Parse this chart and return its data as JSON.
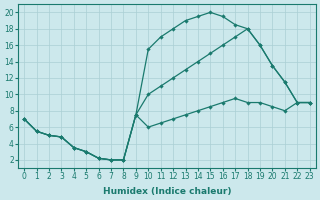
{
  "xlabel": "Humidex (Indice chaleur)",
  "bg_color": "#cce8ec",
  "grid_color": "#aacfd4",
  "line_color": "#1a7a6e",
  "xlim": [
    -0.5,
    23.5
  ],
  "ylim": [
    1,
    21
  ],
  "xticks": [
    0,
    1,
    2,
    3,
    4,
    5,
    6,
    7,
    8,
    9,
    10,
    11,
    12,
    13,
    14,
    15,
    16,
    17,
    18,
    19,
    20,
    21,
    22,
    23
  ],
  "yticks": [
    2,
    4,
    6,
    8,
    10,
    12,
    14,
    16,
    18,
    20
  ],
  "line1_x": [
    0,
    1,
    2,
    3,
    4,
    5,
    6,
    7,
    8,
    9,
    10,
    11,
    12,
    13,
    14,
    15,
    16,
    17,
    18,
    19,
    20,
    21,
    22,
    23
  ],
  "line1_y": [
    7.0,
    5.5,
    5.0,
    4.8,
    3.5,
    3.0,
    2.2,
    2.0,
    2.0,
    7.5,
    15.5,
    17.0,
    18.0,
    19.0,
    19.5,
    20.0,
    19.5,
    18.5,
    18.0,
    16.0,
    13.5,
    11.5,
    9.0,
    9.0
  ],
  "line2_x": [
    0,
    1,
    2,
    3,
    4,
    5,
    6,
    7,
    8,
    9,
    10,
    11,
    12,
    13,
    14,
    15,
    16,
    17,
    18,
    19,
    20,
    21,
    22,
    23
  ],
  "line2_y": [
    7.0,
    5.5,
    5.0,
    4.8,
    3.5,
    3.0,
    2.2,
    2.0,
    2.0,
    7.5,
    6.0,
    6.5,
    7.0,
    7.5,
    8.0,
    8.5,
    9.0,
    9.5,
    9.0,
    9.0,
    8.5,
    8.0,
    9.0,
    9.0
  ],
  "line3_x": [
    0,
    1,
    2,
    3,
    4,
    5,
    6,
    7,
    8,
    9,
    10,
    11,
    12,
    13,
    14,
    15,
    16,
    17,
    18,
    19,
    20,
    21,
    22,
    23
  ],
  "line3_y": [
    7.0,
    5.5,
    5.0,
    4.8,
    3.5,
    3.0,
    2.2,
    2.0,
    2.0,
    7.5,
    10.0,
    11.0,
    12.0,
    13.0,
    14.0,
    15.0,
    16.0,
    17.0,
    18.0,
    16.0,
    13.5,
    11.5,
    9.0,
    9.0
  ]
}
